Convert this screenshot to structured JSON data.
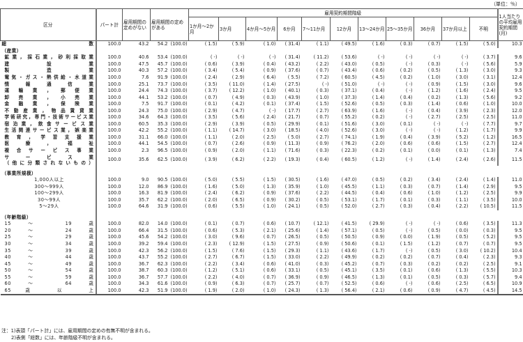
{
  "unit": "（単位：％）",
  "headers": {
    "category": "区分",
    "part_total": "パート計",
    "no_term": "雇用期間の定めがない",
    "has_term": "雇用期間の定めがある",
    "contract_group": "雇用契約期間階級",
    "periods": [
      "1か月～2か月",
      "3か月",
      "4か月～5か月",
      "6か月",
      "7～11か月",
      "12か月",
      "13～24か月",
      "25～35か月",
      "36か月",
      "37か月以上",
      "不明"
    ],
    "average": "1人当たりの平均雇用契約期間(月)"
  },
  "rows": [
    {
      "type": "total",
      "label": "総数",
      "v": [
        "100.0",
        "43.2",
        "54.2",
        "(100.0)",
        "( 1.5)",
        "( 5.9)",
        "( 1.0)",
        "( 31.4)",
        "( 1.1)",
        "( 49.5)",
        "( 1.6)",
        "( 0.3)",
        "( 0.7)",
        "( 1.5)",
        "( 5.0)",
        "10.3"
      ]
    },
    {
      "type": "sec",
      "label": "（産業）"
    },
    {
      "type": "ind",
      "label": "鉱業，採石業，砂利採取業",
      "v": [
        "100.0",
        "40.6",
        "53.4",
        "(100.0)",
        "( -)",
        "( -)",
        "( -)",
        "( 31.4)",
        "( 11.2)",
        "( 53.6)",
        "( -)",
        "( -)",
        "( -)",
        "( -)",
        "( 3.7)",
        "9.6"
      ]
    },
    {
      "type": "ind",
      "label": "建設業",
      "v": [
        "100.0",
        "47.5",
        "45.7",
        "(100.0)",
        "( 0.6)",
        "( 3.9)",
        "( 0.4)",
        "( 43.2)",
        "( 2.2)",
        "( 43.0)",
        "( 0.5)",
        "( -)",
        "( 0.3)",
        "( -)",
        "( 5.6)",
        "5.9"
      ]
    },
    {
      "type": "ind",
      "label": "製造業",
      "v": [
        "100.0",
        "40.3",
        "57.2",
        "(100.0)",
        "( 3.4)",
        "( 5.4)",
        "( 0.9)",
        "( 37.6)",
        "( 0.7)",
        "( 43.4)",
        "( 0.6)",
        "( 0.2)",
        "( 0.5)",
        "( 1.3)",
        "( 3.0)",
        "9.3"
      ]
    },
    {
      "type": "ind",
      "label": "電気・ガス・熱供給・水道業",
      "v": [
        "100.0",
        "7.6",
        "91.9",
        "(100.0)",
        "( 2.4)",
        "( 2.9)",
        "( 6.4)",
        "( 5.5)",
        "( 7.2)",
        "( 60.5)",
        "( 4.5)",
        "( 0.2)",
        "( 1.0)",
        "( 3.0)",
        "( 3.1)",
        "12.4"
      ]
    },
    {
      "type": "ind",
      "label": "情報通信業",
      "v": [
        "100.0",
        "25.1",
        "73.7",
        "(100.0)",
        "( 3.5)",
        "( 11.0)",
        "( 1.4)",
        "( 27.5)",
        "( -)",
        "( 51.0)",
        "( -)",
        "( -)",
        "( 0.9)",
        "( 1.5)",
        "( 3.0)",
        "9.6"
      ]
    },
    {
      "type": "ind",
      "label": "運輸業，郵便業",
      "v": [
        "100.0",
        "24.4",
        "74.3",
        "(100.0)",
        "( 3.7)",
        "( 12.2)",
        "( 1.0)",
        "( 40.1)",
        "( 0.3)",
        "( 37.1)",
        "( 0.4)",
        "( -)",
        "( 1.2)",
        "( 1.6)",
        "( 2.4)",
        "9.5"
      ]
    },
    {
      "type": "ind",
      "label": "卸売業，小売業",
      "v": [
        "100.0",
        "44.1",
        "53.2",
        "(100.0)",
        "( 0.7)",
        "( 4.9)",
        "( 0.3)",
        "( 43.9)",
        "( 1.0)",
        "( 37.3)",
        "( 1.4)",
        "( 0.4)",
        "( 0.2)",
        "( 1.3)",
        "( 5.6)",
        "9.2"
      ]
    },
    {
      "type": "ind",
      "label": "金融業，保険業",
      "v": [
        "100.0",
        "7.5",
        "91.7",
        "(100.0)",
        "( 0.1)",
        "( 4.2)",
        "( 0.1)",
        "( 37.4)",
        "( 1.5)",
        "( 52.6)",
        "( 0.5)",
        "( 0.3)",
        "( 1.4)",
        "( 0.6)",
        "( 1.0)",
        "10.0"
      ]
    },
    {
      "type": "ind",
      "label": "不動産業，物品賃貸業",
      "v": [
        "100.0",
        "24.3",
        "75.0",
        "(100.0)",
        "( 2.9)",
        "( 4.7)",
        "( -)",
        "( 17.7)",
        "( 2.7)",
        "( 63.9)",
        "( 1.6)",
        "( -)",
        "( 0.4)",
        "( 3.9)",
        "( 2.3)",
        "12.0"
      ]
    },
    {
      "type": "ind",
      "label": "学術研究，専門・技術サービス業",
      "v": [
        "100.0",
        "34.6",
        "64.3",
        "(100.0)",
        "( 3.5)",
        "( 5.6)",
        "( 2.4)",
        "( 21.7)",
        "( 0.7)",
        "( 55.2)",
        "( 0.2)",
        "( -)",
        "( 2.7)",
        "( 2.5)",
        "( 2.5)",
        "11.0"
      ]
    },
    {
      "type": "ind",
      "label": "宿泊業，飲食サービス業",
      "v": [
        "100.0",
        "60.5",
        "35.3",
        "(100.0)",
        "( 2.9)",
        "( 3.9)",
        "( 0.5)",
        "( 29.9)",
        "( 0.1)",
        "( 51.6)",
        "( 3.0)",
        "( 0.1)",
        "( -)",
        "( -)",
        "( 7.7)",
        "9.7"
      ]
    },
    {
      "type": "ind",
      "label": "生活関連サービス業，娯楽業",
      "v": [
        "100.0",
        "42.2",
        "55.2",
        "(100.0)",
        "( 1.1)",
        "( 14.7)",
        "( 3.0)",
        "( 18.5)",
        "( 4.0)",
        "( 52.6)",
        "( 3.0)",
        "( -)",
        "( -)",
        "( 1.2)",
        "( 1.7)",
        "9.9"
      ]
    },
    {
      "type": "ind",
      "label": "教育，学習支援業",
      "v": [
        "100.0",
        "31.1",
        "66.0",
        "(100.0)",
        "( 1.1)",
        "( 2.0)",
        "( 2.5)",
        "( 5.0)",
        "( 2.7)",
        "( 74.1)",
        "( 1.9)",
        "( 0.4)",
        "( 3.9)",
        "( 5.2)",
        "( 1.2)",
        "16.5"
      ]
    },
    {
      "type": "ind",
      "label": "医療，福祉",
      "v": [
        "100.0",
        "44.1",
        "54.5",
        "(100.0)",
        "( 0.7)",
        "( 2.6)",
        "( 0.9)",
        "( 11.3)",
        "( 0.9)",
        "( 76.2)",
        "( 2.0)",
        "( 0.6)",
        "( 0.6)",
        "( 1.5)",
        "( 2.7)",
        "12.4"
      ]
    },
    {
      "type": "ind",
      "label": "複合サービス事業",
      "v": [
        "100.0",
        "2.3",
        "96.5",
        "(100.0)",
        "( 0.9)",
        "( 2.0)",
        "( 1.1)",
        "( 71.6)",
        "( 0.3)",
        "( 22.3)",
        "( 0.2)",
        "( 0.1)",
        "( 0.0)",
        "( 0.1)",
        "( 1.3)",
        "7.4"
      ]
    },
    {
      "type": "ind2",
      "label": "サービス業",
      "label2": "（他に分類されないもの）",
      "v": [
        "100.0",
        "35.6",
        "62.5",
        "(100.0)",
        "( 3.9)",
        "( 6.2)",
        "( 2.2)",
        "( 19.3)",
        "( 0.4)",
        "( 60.5)",
        "( 1.2)",
        "( -)",
        "( 1.4)",
        "( 2.4)",
        "( 2.6)",
        "11.5"
      ]
    },
    {
      "type": "blank"
    },
    {
      "type": "sec",
      "label": "（事業所規模）"
    },
    {
      "type": "size",
      "label": "1,000人以上",
      "v": [
        "100.0",
        "9.0",
        "90.5",
        "(100.0)",
        "( 5.0)",
        "( 5.5)",
        "( 1.5)",
        "( 30.5)",
        "( 1.6)",
        "( 47.0)",
        "( 0.5)",
        "( 0.2)",
        "( 3.4)",
        "( 2.4)",
        "( 1.4)",
        "11.0"
      ]
    },
    {
      "type": "size",
      "label": "300～999人",
      "v": [
        "100.0",
        "12.0",
        "86.9",
        "(100.0)",
        "( 1.6)",
        "( 5.0)",
        "( 1.3)",
        "( 35.9)",
        "( 1.0)",
        "( 45.5)",
        "( 1.1)",
        "( 0.3)",
        "( 0.7)",
        "( 1.4)",
        "( 2.9)",
        "9.5"
      ]
    },
    {
      "type": "size",
      "label": "100～299人",
      "v": [
        "100.0",
        "16.3",
        "81.9",
        "(100.0)",
        "( 2.4)",
        "( 6.2)",
        "( 0.9)",
        "( 37.6)",
        "( 2.2)",
        "( 44.5)",
        "( 0.4)",
        "( 0.6)",
        "( 1.0)",
        "( 1.2)",
        "( 2.5)",
        "9.9"
      ]
    },
    {
      "type": "size",
      "label": "30～99人",
      "v": [
        "100.0",
        "35.7",
        "62.2",
        "(100.0)",
        "( 2.0)",
        "( 6.5)",
        "( 0.9)",
        "( 30.2)",
        "( 0.5)",
        "( 53.1)",
        "( 1.7)",
        "( 0.1)",
        "( 0.3)",
        "( 1.1)",
        "( 3.5)",
        "10.0"
      ]
    },
    {
      "type": "size",
      "label": "5～29人",
      "v": [
        "100.0",
        "64.6",
        "31.9",
        "(100.0)",
        "( 0.6)",
        "( 5.5)",
        "( 1.0)",
        "( 24.1)",
        "( 0.5)",
        "( 52.0)",
        "( 2.7)",
        "( 0.3)",
        "( 0.4)",
        "( 2.2)",
        "( 10.5)",
        "11.5"
      ]
    },
    {
      "type": "blank"
    },
    {
      "type": "sec",
      "label": "（年齢階級）"
    },
    {
      "type": "age",
      "label": "15 ～ 19 歳",
      "v": [
        "100.0",
        "82.0",
        "14.0",
        "(100.0)",
        "( 0.1)",
        "( 0.7)",
        "( 0.6)",
        "( 10.7)",
        "( 12.1)",
        "( 41.5)",
        "( 29.9)",
        "( -)",
        "( -)",
        "( 0.6)",
        "( 3.5)",
        "11.3"
      ]
    },
    {
      "type": "age",
      "label": "20 ～ 24 歳",
      "v": [
        "100.0",
        "66.4",
        "31.5",
        "(100.0)",
        "( 0.6)",
        "( 5.3)",
        "( 2.1)",
        "( 25.6)",
        "( 1.4)",
        "( 57.1)",
        "( 0.5)",
        "( -)",
        "( 0.5)",
        "( 0.0)",
        "( 0.3)",
        "9.5"
      ]
    },
    {
      "type": "age",
      "label": "25 ～ 29 歳",
      "v": [
        "100.0",
        "45.6",
        "54.2",
        "(100.0)",
        "( 3.0)",
        "( 9.6)",
        "( 0.7)",
        "( 26.5)",
        "( 0.5)",
        "( 50.5)",
        "( 0.9)",
        "( 0.0)",
        "( 1.9)",
        "( 0.5)",
        "( 5.2)",
        "9.5"
      ]
    },
    {
      "type": "age",
      "label": "30 ～ 34 歳",
      "v": [
        "100.0",
        "39.2",
        "59.4",
        "(100.0)",
        "( 2.3)",
        "( 12.9)",
        "( 1.5)",
        "( 27.5)",
        "( 0.9)",
        "( 50.6)",
        "( 0.1)",
        "( 1.5)",
        "( 1.2)",
        "( 0.7)",
        "( 0.7)",
        "9.5"
      ]
    },
    {
      "type": "age",
      "label": "35 ～ 39 歳",
      "v": [
        "100.0",
        "42.3",
        "56.2",
        "(100.0)",
        "( 1.5)",
        "( 7.6)",
        "( 1.5)",
        "( 29.3)",
        "( 1.1)",
        "( 43.6)",
        "( 1.7)",
        "( -)",
        "( 0.5)",
        "( 3.0)",
        "( 10.2)",
        "10.4"
      ]
    },
    {
      "type": "age",
      "label": "40 ～ 44 歳",
      "v": [
        "100.0",
        "43.7",
        "55.2",
        "(100.0)",
        "( 2.7)",
        "( 6.7)",
        "( 1.5)",
        "( 33.0)",
        "( 2.2)",
        "( 49.9)",
        "( 0.2)",
        "( 0.2)",
        "( 0.7)",
        "( 0.4)",
        "( 2.3)",
        "9.3"
      ]
    },
    {
      "type": "age",
      "label": "45 ～ 49 歳",
      "v": [
        "100.0",
        "36.7",
        "62.3",
        "(100.0)",
        "( 2.2)",
        "( 3.4)",
        "( 0.6)",
        "( 41.0)",
        "( 0.3)",
        "( 45.2)",
        "( 0.7)",
        "( 0.3)",
        "( 0.2)",
        "( 0.2)",
        "( 2.5)",
        "9.1"
      ]
    },
    {
      "type": "age",
      "label": "50 ～ 54 歳",
      "v": [
        "100.0",
        "38.7",
        "60.3",
        "(100.0)",
        "( 1.2)",
        "( 5.1)",
        "( 0.6)",
        "( 33.1)",
        "( 0.5)",
        "( 45.1)",
        "( 3.5)",
        "( 0.1)",
        "( 0.6)",
        "( 1.3)",
        "( 5.5)",
        "10.3"
      ]
    },
    {
      "type": "age",
      "label": "55 ～ 59 歳",
      "v": [
        "100.0",
        "36.7",
        "57.7",
        "(100.0)",
        "( 2.2)",
        "( 4.0)",
        "( 0.7)",
        "( 36.9)",
        "( 0.9)",
        "( 46.5)",
        "( 1.3)",
        "( 0.1)",
        "( 0.5)",
        "( 0.3)",
        "( 5.7)",
        "9.4"
      ]
    },
    {
      "type": "age",
      "label": "60 ～ 64 歳",
      "v": [
        "100.0",
        "34.3",
        "61.6",
        "(100.0)",
        "( 0.9)",
        "( 6.3)",
        "( 0.7)",
        "( 25.7)",
        "( 0.7)",
        "( 52.5)",
        "( 0.6)",
        "( -)",
        "( 0.6)",
        "( 2.5)",
        "( 6.5)",
        "10.9"
      ]
    },
    {
      "type": "age",
      "label": "65 歳 以 上",
      "v": [
        "100.0",
        "42.3",
        "51.9",
        "(100.0)",
        "( 1.9)",
        "( 2.0)",
        "( 1.0)",
        "( 24.3)",
        "( 1.3)",
        "( 56.4)",
        "( 2.1)",
        "( 0.6)",
        "( 0.9)",
        "( 4.7)",
        "( 4.5)",
        "14.5"
      ]
    }
  ],
  "notes": [
    "注：1)表頭「パート計」には、雇用期間の定めの有無不明が含まれる。",
    "2)表側「総数」には、年齢階級不明が含まれる。"
  ]
}
